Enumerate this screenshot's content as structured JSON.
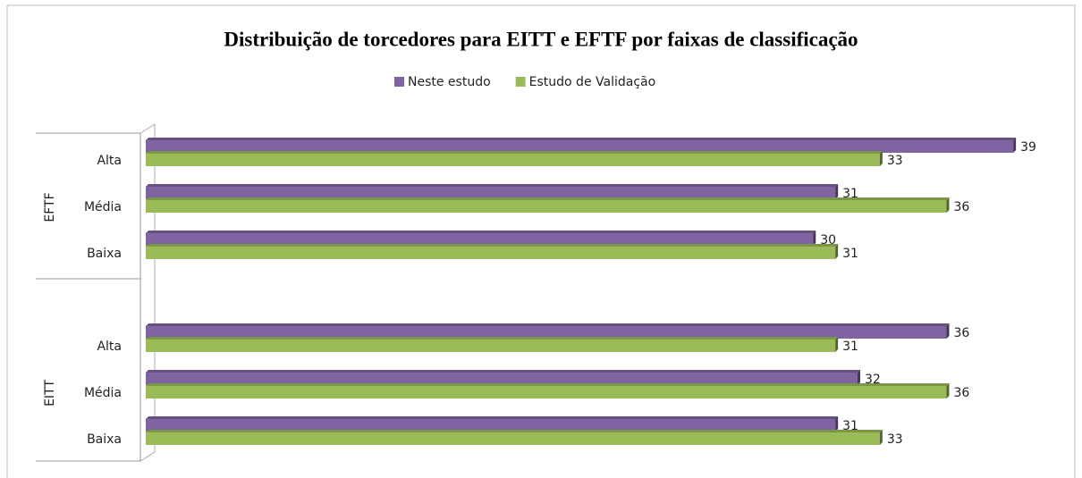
{
  "chart_data": {
    "type": "bar",
    "orientation": "horizontal",
    "title": "Distribuição de torcedores para EITT e EFTF por faixas de classificação",
    "groups": [
      {
        "name": "EFTF",
        "categories": [
          "Alta",
          "Média",
          "Baixa"
        ]
      },
      {
        "name": "EITT",
        "categories": [
          "Alta",
          "Média",
          "Baixa"
        ]
      }
    ],
    "series": [
      {
        "name": "Neste estudo",
        "color": "#8064a2",
        "values": [
          39,
          31,
          30,
          36,
          32,
          31
        ]
      },
      {
        "name": "Estudo de Validação",
        "color": "#9bbb59",
        "values": [
          33,
          36,
          31,
          31,
          36,
          33
        ]
      }
    ],
    "xlim": [
      0,
      40
    ],
    "legend": "top"
  }
}
